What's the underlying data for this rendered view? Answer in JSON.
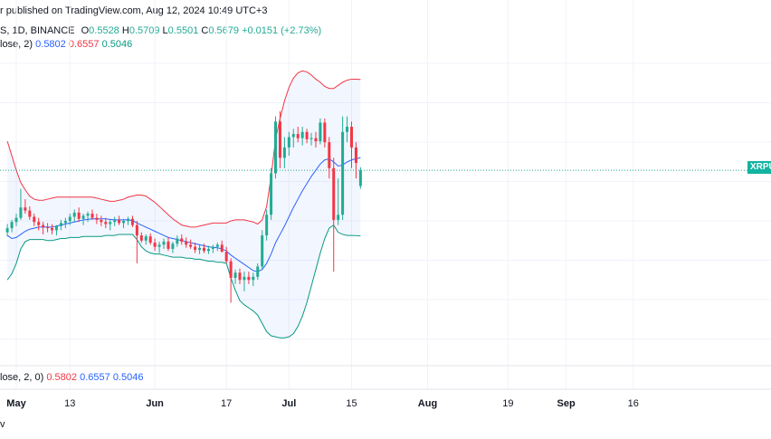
{
  "header": {
    "publish_text": "r published on TradingView.com, Aug 12, 2024 10:49 UTC+3",
    "symbol_text": "S, 1D, BINANCE",
    "ohlc": {
      "o_label": "O",
      "o": "0.5528",
      "h_label": "H",
      "h": "0.5709",
      "l_label": "L",
      "l": "0.5501",
      "c_label": "C",
      "c": "0.5679",
      "change": "+0.0151 (+2.73%)"
    }
  },
  "bb_legend": {
    "label": "lose, 2)",
    "basis": "0.5802",
    "upper": "0.6557",
    "lower": "0.5046"
  },
  "bb_legend2": {
    "label": "lose, 2, 0)",
    "basis": "0.5802",
    "upper": "0.6557",
    "lower": "0.5046"
  },
  "price_label": "XRPU",
  "footer_text": "v",
  "colors": {
    "up": "#22ab94",
    "down": "#f23645",
    "basis": "#2962ff",
    "upper": "#f23645",
    "lower": "#089981",
    "band_fill": "#2962ff"
  },
  "chart_data": {
    "type": "candlestick",
    "title": "",
    "xlabel": "",
    "ylabel": "",
    "ylim": [
      0.38,
      0.68
    ],
    "x_ticks": [
      {
        "label": "May",
        "day": 0,
        "bold": true
      },
      {
        "label": "13",
        "day": 12,
        "bold": false
      },
      {
        "label": "Jun",
        "day": 31,
        "bold": true
      },
      {
        "label": "17",
        "day": 47,
        "bold": false
      },
      {
        "label": "Jul",
        "day": 61,
        "bold": true
      },
      {
        "label": "15",
        "day": 75,
        "bold": false
      },
      {
        "label": "Aug",
        "day": 92,
        "bold": true
      },
      {
        "label": "19",
        "day": 110,
        "bold": false
      },
      {
        "label": "Sep",
        "day": 123,
        "bold": true
      },
      {
        "label": "16",
        "day": 138,
        "bold": false
      }
    ],
    "current_price": 0.5679,
    "candles": [
      [
        0.508,
        0.516,
        0.504,
        0.512
      ],
      [
        0.512,
        0.52,
        0.508,
        0.518
      ],
      [
        0.518,
        0.526,
        0.514,
        0.522
      ],
      [
        0.522,
        0.55,
        0.52,
        0.532
      ],
      [
        0.532,
        0.54,
        0.526,
        0.529
      ],
      [
        0.529,
        0.533,
        0.52,
        0.523
      ],
      [
        0.523,
        0.526,
        0.514,
        0.518
      ],
      [
        0.518,
        0.522,
        0.51,
        0.515
      ],
      [
        0.515,
        0.518,
        0.506,
        0.513
      ],
      [
        0.513,
        0.517,
        0.508,
        0.512
      ],
      [
        0.512,
        0.516,
        0.506,
        0.51
      ],
      [
        0.51,
        0.515,
        0.505,
        0.514
      ],
      [
        0.514,
        0.52,
        0.51,
        0.517
      ],
      [
        0.517,
        0.522,
        0.512,
        0.519
      ],
      [
        0.519,
        0.526,
        0.515,
        0.523
      ],
      [
        0.523,
        0.53,
        0.518,
        0.527
      ],
      [
        0.527,
        0.532,
        0.518,
        0.521
      ],
      [
        0.521,
        0.526,
        0.515,
        0.524
      ],
      [
        0.524,
        0.528,
        0.518,
        0.526
      ],
      [
        0.526,
        0.53,
        0.52,
        0.522
      ],
      [
        0.522,
        0.526,
        0.516,
        0.52
      ],
      [
        0.52,
        0.524,
        0.514,
        0.518
      ],
      [
        0.518,
        0.522,
        0.512,
        0.516
      ],
      [
        0.516,
        0.52,
        0.51,
        0.518
      ],
      [
        0.518,
        0.523,
        0.514,
        0.52
      ],
      [
        0.52,
        0.524,
        0.515,
        0.517
      ],
      [
        0.517,
        0.521,
        0.512,
        0.519
      ],
      [
        0.519,
        0.523,
        0.515,
        0.521
      ],
      [
        0.521,
        0.524,
        0.513,
        0.515
      ],
      [
        0.515,
        0.519,
        0.478,
        0.505
      ],
      [
        0.505,
        0.508,
        0.498,
        0.5
      ],
      [
        0.5,
        0.506,
        0.496,
        0.504
      ],
      [
        0.504,
        0.507,
        0.496,
        0.498
      ],
      [
        0.498,
        0.502,
        0.49,
        0.494
      ],
      [
        0.494,
        0.499,
        0.488,
        0.496
      ],
      [
        0.496,
        0.502,
        0.492,
        0.499
      ],
      [
        0.499,
        0.503,
        0.49,
        0.492
      ],
      [
        0.492,
        0.499,
        0.488,
        0.497
      ],
      [
        0.497,
        0.505,
        0.494,
        0.502
      ],
      [
        0.502,
        0.506,
        0.496,
        0.499
      ],
      [
        0.499,
        0.503,
        0.493,
        0.496
      ],
      [
        0.496,
        0.501,
        0.492,
        0.494
      ],
      [
        0.494,
        0.498,
        0.488,
        0.491
      ],
      [
        0.491,
        0.496,
        0.487,
        0.493
      ],
      [
        0.493,
        0.497,
        0.488,
        0.49
      ],
      [
        0.49,
        0.495,
        0.487,
        0.492
      ],
      [
        0.492,
        0.496,
        0.488,
        0.494
      ],
      [
        0.494,
        0.498,
        0.49,
        0.496
      ],
      [
        0.496,
        0.5,
        0.49,
        0.489
      ],
      [
        0.489,
        0.494,
        0.478,
        0.48
      ],
      [
        0.48,
        0.483,
        0.44,
        0.464
      ],
      [
        0.464,
        0.472,
        0.458,
        0.469
      ],
      [
        0.469,
        0.473,
        0.458,
        0.462
      ],
      [
        0.462,
        0.47,
        0.451,
        0.465
      ],
      [
        0.465,
        0.47,
        0.458,
        0.462
      ],
      [
        0.462,
        0.469,
        0.456,
        0.465
      ],
      [
        0.465,
        0.478,
        0.462,
        0.475
      ],
      [
        0.475,
        0.51,
        0.472,
        0.505
      ],
      [
        0.505,
        0.53,
        0.5,
        0.525
      ],
      [
        0.525,
        0.57,
        0.52,
        0.565
      ],
      [
        0.565,
        0.62,
        0.56,
        0.615
      ],
      [
        0.615,
        0.625,
        0.57,
        0.58
      ],
      [
        0.58,
        0.6,
        0.57,
        0.59
      ],
      [
        0.59,
        0.605,
        0.582,
        0.6
      ],
      [
        0.6,
        0.608,
        0.59,
        0.603
      ],
      [
        0.603,
        0.61,
        0.595,
        0.599
      ],
      [
        0.599,
        0.61,
        0.592,
        0.605
      ],
      [
        0.605,
        0.608,
        0.594,
        0.598
      ],
      [
        0.598,
        0.604,
        0.592,
        0.599
      ],
      [
        0.599,
        0.605,
        0.59,
        0.596
      ],
      [
        0.596,
        0.618,
        0.593,
        0.614
      ],
      [
        0.614,
        0.618,
        0.59,
        0.595
      ],
      [
        0.595,
        0.6,
        0.56,
        0.57
      ],
      [
        0.57,
        0.58,
        0.47,
        0.52
      ],
      [
        0.52,
        0.56,
        0.515,
        0.525
      ],
      [
        0.525,
        0.62,
        0.52,
        0.605
      ],
      [
        0.605,
        0.62,
        0.595,
        0.61
      ],
      [
        0.61,
        0.615,
        0.57,
        0.59
      ],
      [
        0.59,
        0.595,
        0.56,
        0.575
      ],
      [
        0.5528,
        0.5709,
        0.5501,
        0.5679
      ]
    ],
    "basis": [
      0.505,
      0.502,
      0.503,
      0.506,
      0.509,
      0.511,
      0.512,
      0.513,
      0.513,
      0.513,
      0.513,
      0.514,
      0.515,
      0.516,
      0.517,
      0.518,
      0.519,
      0.52,
      0.5205,
      0.521,
      0.521,
      0.521,
      0.521,
      0.5205,
      0.52,
      0.52,
      0.52,
      0.52,
      0.5195,
      0.517,
      0.515,
      0.513,
      0.511,
      0.509,
      0.507,
      0.505,
      0.503,
      0.502,
      0.501,
      0.5,
      0.499,
      0.498,
      0.497,
      0.496,
      0.495,
      0.494,
      0.4935,
      0.493,
      0.492,
      0.49,
      0.486,
      0.483,
      0.48,
      0.477,
      0.474,
      0.471,
      0.47,
      0.472,
      0.478,
      0.487,
      0.498,
      0.506,
      0.514,
      0.523,
      0.532,
      0.54,
      0.548,
      0.555,
      0.562,
      0.568,
      0.574,
      0.578,
      0.579,
      0.576,
      0.572,
      0.573,
      0.576,
      0.578,
      0.579,
      0.5802
    ],
    "upper": [
      0.596,
      0.582,
      0.568,
      0.556,
      0.549,
      0.543,
      0.54,
      0.539,
      0.539,
      0.54,
      0.541,
      0.542,
      0.542,
      0.542,
      0.542,
      0.542,
      0.542,
      0.542,
      0.542,
      0.542,
      0.541,
      0.54,
      0.539,
      0.538,
      0.538,
      0.539,
      0.54,
      0.542,
      0.543,
      0.544,
      0.544,
      0.543,
      0.54,
      0.537,
      0.533,
      0.529,
      0.525,
      0.521,
      0.518,
      0.515,
      0.514,
      0.513,
      0.513,
      0.514,
      0.515,
      0.516,
      0.517,
      0.517,
      0.517,
      0.517,
      0.519,
      0.52,
      0.52,
      0.52,
      0.519,
      0.518,
      0.516,
      0.52,
      0.533,
      0.562,
      0.598,
      0.618,
      0.635,
      0.648,
      0.657,
      0.662,
      0.664,
      0.663,
      0.66,
      0.656,
      0.653,
      0.649,
      0.647,
      0.647,
      0.65,
      0.653,
      0.655,
      0.656,
      0.656,
      0.6557
    ],
    "lower": [
      0.462,
      0.468,
      0.478,
      0.492,
      0.499,
      0.501,
      0.501,
      0.501,
      0.501,
      0.5,
      0.5,
      0.501,
      0.502,
      0.502,
      0.503,
      0.503,
      0.503,
      0.504,
      0.504,
      0.504,
      0.504,
      0.504,
      0.505,
      0.505,
      0.505,
      0.506,
      0.506,
      0.506,
      0.506,
      0.501,
      0.494,
      0.49,
      0.488,
      0.487,
      0.487,
      0.486,
      0.485,
      0.484,
      0.484,
      0.484,
      0.483,
      0.483,
      0.482,
      0.482,
      0.481,
      0.48,
      0.48,
      0.479,
      0.479,
      0.478,
      0.464,
      0.452,
      0.442,
      0.438,
      0.435,
      0.432,
      0.428,
      0.42,
      0.412,
      0.408,
      0.407,
      0.406,
      0.406,
      0.407,
      0.41,
      0.417,
      0.427,
      0.44,
      0.456,
      0.472,
      0.488,
      0.502,
      0.512,
      0.515,
      0.508,
      0.506,
      0.505,
      0.505,
      0.5048,
      0.5046
    ]
  }
}
